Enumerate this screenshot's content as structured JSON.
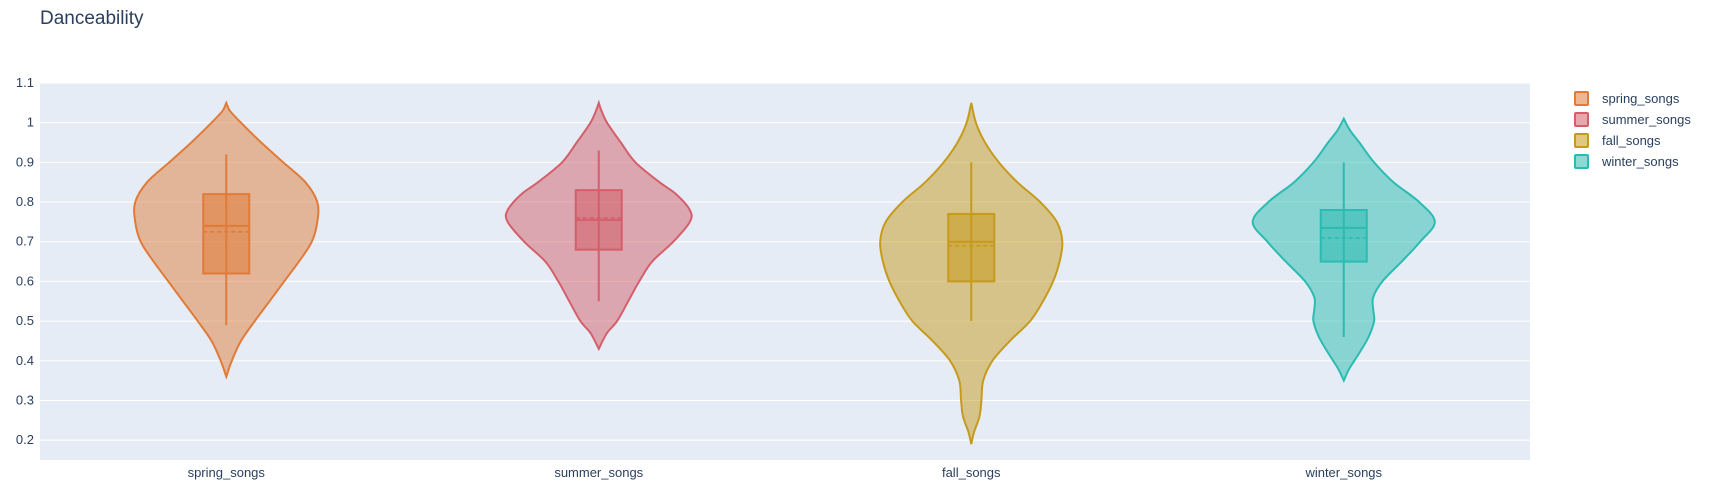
{
  "chart_data": {
    "type": "violin",
    "title": "Danceability",
    "xlabel": "",
    "ylabel": "",
    "ylim": [
      0.15,
      1.1
    ],
    "y_ticks": [
      0.2,
      0.3,
      0.4,
      0.5,
      0.6,
      0.7,
      0.8,
      0.9,
      1,
      1.1
    ],
    "y_tick_labels": [
      "0.2",
      "0.3",
      "0.4",
      "0.5",
      "0.6",
      "0.7",
      "0.8",
      "0.9",
      "1",
      "1.1"
    ],
    "grid": true,
    "legend_position": "top-right",
    "categories": [
      "spring_songs",
      "summer_songs",
      "fall_songs",
      "winter_songs"
    ],
    "series": [
      {
        "name": "spring_songs",
        "color": "#e07b39",
        "box": {
          "whisker_low": 0.49,
          "q1": 0.62,
          "median": 0.74,
          "mean": 0.725,
          "q3": 0.82,
          "whisker_high": 0.92
        },
        "kde_range": [
          0.36,
          1.05
        ],
        "kde": [
          [
            0.36,
            0.0
          ],
          [
            0.4,
            0.06
          ],
          [
            0.45,
            0.16
          ],
          [
            0.5,
            0.31
          ],
          [
            0.55,
            0.47
          ],
          [
            0.6,
            0.63
          ],
          [
            0.65,
            0.79
          ],
          [
            0.7,
            0.93
          ],
          [
            0.75,
            0.99
          ],
          [
            0.8,
            0.99
          ],
          [
            0.85,
            0.86
          ],
          [
            0.9,
            0.62
          ],
          [
            0.95,
            0.38
          ],
          [
            1.0,
            0.16
          ],
          [
            1.03,
            0.04
          ],
          [
            1.05,
            0.0
          ]
        ]
      },
      {
        "name": "summer_songs",
        "color": "#d45f6a",
        "box": {
          "whisker_low": 0.55,
          "q1": 0.68,
          "median": 0.755,
          "mean": 0.76,
          "q3": 0.83,
          "whisker_high": 0.93
        },
        "kde_range": [
          0.43,
          1.05
        ],
        "kde": [
          [
            0.43,
            0.0
          ],
          [
            0.47,
            0.09
          ],
          [
            0.5,
            0.2
          ],
          [
            0.55,
            0.32
          ],
          [
            0.6,
            0.44
          ],
          [
            0.65,
            0.58
          ],
          [
            0.7,
            0.81
          ],
          [
            0.75,
            0.99
          ],
          [
            0.78,
            0.99
          ],
          [
            0.82,
            0.84
          ],
          [
            0.85,
            0.66
          ],
          [
            0.9,
            0.4
          ],
          [
            0.95,
            0.24
          ],
          [
            1.0,
            0.09
          ],
          [
            1.03,
            0.03
          ],
          [
            1.05,
            0.0
          ]
        ]
      },
      {
        "name": "fall_songs",
        "color": "#c69a1c",
        "box": {
          "whisker_low": 0.5,
          "q1": 0.6,
          "median": 0.7,
          "mean": 0.69,
          "q3": 0.77,
          "whisker_high": 0.9
        },
        "kde_range": [
          0.19,
          1.05
        ],
        "kde": [
          [
            0.19,
            0.0
          ],
          [
            0.22,
            0.03
          ],
          [
            0.26,
            0.09
          ],
          [
            0.3,
            0.11
          ],
          [
            0.35,
            0.13
          ],
          [
            0.4,
            0.23
          ],
          [
            0.45,
            0.42
          ],
          [
            0.5,
            0.64
          ],
          [
            0.55,
            0.78
          ],
          [
            0.6,
            0.89
          ],
          [
            0.65,
            0.96
          ],
          [
            0.7,
            0.99
          ],
          [
            0.75,
            0.93
          ],
          [
            0.8,
            0.75
          ],
          [
            0.85,
            0.5
          ],
          [
            0.9,
            0.3
          ],
          [
            0.95,
            0.15
          ],
          [
            1.0,
            0.05
          ],
          [
            1.05,
            0.0
          ]
        ]
      },
      {
        "name": "winter_songs",
        "color": "#2bbbb0",
        "box": {
          "whisker_low": 0.46,
          "q1": 0.65,
          "median": 0.735,
          "mean": 0.71,
          "q3": 0.78,
          "whisker_high": 0.9
        },
        "kde_range": [
          0.35,
          1.01
        ],
        "kde": [
          [
            0.35,
            0.0
          ],
          [
            0.38,
            0.06
          ],
          [
            0.42,
            0.17
          ],
          [
            0.46,
            0.27
          ],
          [
            0.5,
            0.33
          ],
          [
            0.53,
            0.32
          ],
          [
            0.56,
            0.32
          ],
          [
            0.6,
            0.42
          ],
          [
            0.65,
            0.63
          ],
          [
            0.7,
            0.83
          ],
          [
            0.75,
            0.99
          ],
          [
            0.8,
            0.82
          ],
          [
            0.85,
            0.54
          ],
          [
            0.9,
            0.33
          ],
          [
            0.95,
            0.17
          ],
          [
            0.98,
            0.07
          ],
          [
            1.01,
            0.0
          ]
        ]
      }
    ]
  }
}
